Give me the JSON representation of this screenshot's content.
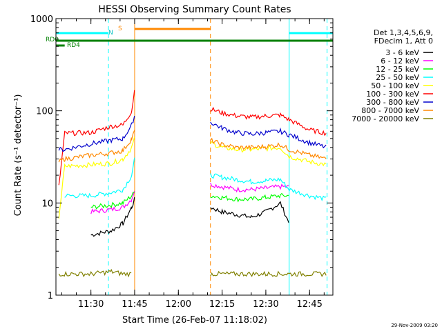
{
  "chart_data": {
    "type": "line",
    "title": "HESSI Observing Summary Count Rates",
    "xlabel": "Start Time (26-Feb-07 11:18:02)",
    "ylabel": "Count Rate (s⁻¹ detector⁻¹)",
    "y_scale": "log",
    "ylim": [
      1,
      1000
    ],
    "xlim": [
      "11:18",
      "12:53"
    ],
    "x_ticks": [
      "11:30",
      "11:45",
      "12:00",
      "12:15",
      "12:30",
      "12:45"
    ],
    "y_ticks": [
      "1",
      "10",
      "100",
      "1000"
    ],
    "legend": {
      "position": "right",
      "header": [
        "Det 1,3,4,5,6,9,",
        "FDecim 1, Att 0"
      ]
    },
    "series": [
      {
        "name": "3 - 6 keV",
        "color": "#000000",
        "points": [
          [
            "11:30",
            4.5
          ],
          [
            "11:37",
            5
          ],
          [
            "11:41",
            6
          ],
          [
            "11:44",
            9
          ],
          [
            "11:45",
            11
          ],
          [
            "12:11",
            9
          ],
          [
            "12:15",
            8
          ],
          [
            "12:20",
            7.5
          ],
          [
            "12:25",
            7
          ],
          [
            "12:30",
            8
          ],
          [
            "12:35",
            10
          ],
          [
            "12:38",
            6
          ]
        ]
      },
      {
        "name": "6 - 12 keV",
        "color": "#ff00ff",
        "points": [
          [
            "11:30",
            8
          ],
          [
            "11:37",
            8.5
          ],
          [
            "11:41",
            9
          ],
          [
            "11:44",
            11
          ],
          [
            "11:45",
            14
          ],
          [
            "12:11",
            16
          ],
          [
            "12:15",
            15
          ],
          [
            "12:20",
            14
          ],
          [
            "12:25",
            14
          ],
          [
            "12:30",
            14.5
          ],
          [
            "12:35",
            15
          ],
          [
            "12:38",
            15
          ]
        ]
      },
      {
        "name": "12 - 25 keV",
        "color": "#00ff00",
        "points": [
          [
            "11:30",
            9
          ],
          [
            "11:37",
            9.5
          ],
          [
            "11:41",
            10
          ],
          [
            "11:44",
            12
          ],
          [
            "11:45",
            13
          ],
          [
            "12:11",
            12
          ],
          [
            "12:15",
            11.5
          ],
          [
            "12:20",
            11
          ],
          [
            "12:25",
            11
          ],
          [
            "12:30",
            11.5
          ],
          [
            "12:35",
            12
          ],
          [
            "12:38",
            12
          ]
        ]
      },
      {
        "name": "25 - 50 keV",
        "color": "#00ffff",
        "points": [
          [
            "11:21",
            12
          ],
          [
            "11:30",
            12
          ],
          [
            "11:37",
            13
          ],
          [
            "11:41",
            14
          ],
          [
            "11:44",
            20
          ],
          [
            "11:45",
            30
          ],
          [
            "12:11",
            20
          ],
          [
            "12:15",
            19
          ],
          [
            "12:20",
            18
          ],
          [
            "12:25",
            17
          ],
          [
            "12:30",
            17.5
          ],
          [
            "12:35",
            18
          ],
          [
            "12:38",
            14
          ],
          [
            "12:45",
            12
          ],
          [
            "12:51",
            11
          ]
        ]
      },
      {
        "name": "50 - 100 keV",
        "color": "#ffff00",
        "points": [
          [
            "11:19",
            7
          ],
          [
            "11:21",
            25
          ],
          [
            "11:30",
            26
          ],
          [
            "11:37",
            27
          ],
          [
            "11:41",
            30
          ],
          [
            "11:44",
            40
          ],
          [
            "11:45",
            50
          ],
          [
            "12:11",
            45
          ],
          [
            "12:15",
            40
          ],
          [
            "12:20",
            38
          ],
          [
            "12:25",
            38
          ],
          [
            "12:30",
            39
          ],
          [
            "12:35",
            40
          ],
          [
            "12:38",
            32
          ],
          [
            "12:45",
            28
          ],
          [
            "12:51",
            26
          ]
        ]
      },
      {
        "name": "100 - 300 keV",
        "color": "#ff0000",
        "points": [
          [
            "11:19",
            15
          ],
          [
            "11:21",
            57
          ],
          [
            "11:30",
            58
          ],
          [
            "11:37",
            68
          ],
          [
            "11:41",
            70
          ],
          [
            "11:44",
            100
          ],
          [
            "11:45",
            170
          ],
          [
            "12:11",
            105
          ],
          [
            "12:15",
            95
          ],
          [
            "12:20",
            88
          ],
          [
            "12:25",
            85
          ],
          [
            "12:30",
            88
          ],
          [
            "12:35",
            90
          ],
          [
            "12:38",
            80
          ],
          [
            "12:45",
            62
          ],
          [
            "12:51",
            57
          ]
        ]
      },
      {
        "name": "300 - 800 keV",
        "color": "#0000cc",
        "points": [
          [
            "11:19",
            38
          ],
          [
            "11:21",
            38
          ],
          [
            "11:30",
            44
          ],
          [
            "11:37",
            48
          ],
          [
            "11:41",
            50
          ],
          [
            "11:44",
            70
          ],
          [
            "11:45",
            90
          ],
          [
            "12:11",
            75
          ],
          [
            "12:15",
            65
          ],
          [
            "12:20",
            58
          ],
          [
            "12:25",
            56
          ],
          [
            "12:30",
            58
          ],
          [
            "12:35",
            60
          ],
          [
            "12:38",
            55
          ],
          [
            "12:45",
            45
          ],
          [
            "12:51",
            40
          ]
        ]
      },
      {
        "name": "800 - 7000 keV",
        "color": "#ff8800",
        "points": [
          [
            "11:19",
            28
          ],
          [
            "11:21",
            30
          ],
          [
            "11:30",
            33
          ],
          [
            "11:37",
            35
          ],
          [
            "11:41",
            37
          ],
          [
            "11:44",
            50
          ],
          [
            "11:45",
            60
          ],
          [
            "12:11",
            48
          ],
          [
            "12:15",
            43
          ],
          [
            "12:20",
            40
          ],
          [
            "12:25",
            40
          ],
          [
            "12:30",
            41
          ],
          [
            "12:35",
            43
          ],
          [
            "12:38",
            38
          ],
          [
            "12:45",
            33
          ],
          [
            "12:51",
            30
          ]
        ]
      },
      {
        "name": "7000 - 20000 keV",
        "color": "#808000",
        "points": [
          [
            "11:19",
            1.7
          ],
          [
            "11:30",
            1.7
          ],
          [
            "11:37",
            1.8
          ],
          [
            "11:41",
            1.7
          ],
          [
            "11:44",
            1.7
          ],
          [
            "12:11",
            1.7
          ],
          [
            "12:20",
            1.7
          ],
          [
            "12:30",
            1.7
          ],
          [
            "12:38",
            1.7
          ],
          [
            "12:45",
            1.7
          ],
          [
            "12:51",
            1.7
          ]
        ]
      }
    ],
    "annotations": [
      {
        "label": "RD0",
        "color": "#008000"
      },
      {
        "label": "RD4",
        "color": "#008000"
      },
      {
        "label": "N",
        "color": "#00c0c0"
      },
      {
        "label": "S",
        "color": "#ff8800"
      }
    ],
    "flags": [
      {
        "label": "RD0",
        "color": "#008000",
        "x_from": "11:18",
        "x_to": "12:53"
      },
      {
        "label": "RD4",
        "color": "#008000",
        "x_from": "11:18",
        "x_to": "11:21"
      },
      {
        "label": "N",
        "color": "#00ffff",
        "x_from": "11:18",
        "x_to": "11:36"
      },
      {
        "label": "N",
        "color": "#00ffff",
        "x_from": "12:38",
        "x_to": "12:53"
      },
      {
        "label": "S",
        "color": "#ff8800",
        "x_from": "11:45",
        "x_to": "12:11"
      }
    ],
    "vertical_markers": [
      {
        "x": "11:36",
        "color": "#00ffff",
        "style": "dashed"
      },
      {
        "x": "11:45",
        "color": "#ff8800",
        "style": "solid"
      },
      {
        "x": "12:11",
        "color": "#ff8800",
        "style": "dashed"
      },
      {
        "x": "12:38",
        "color": "#00ffff",
        "style": "solid"
      },
      {
        "x": "12:51",
        "color": "#00ffff",
        "style": "dashed"
      }
    ]
  },
  "footer": {
    "timestamp": "29-Nov-2009 03:20"
  }
}
